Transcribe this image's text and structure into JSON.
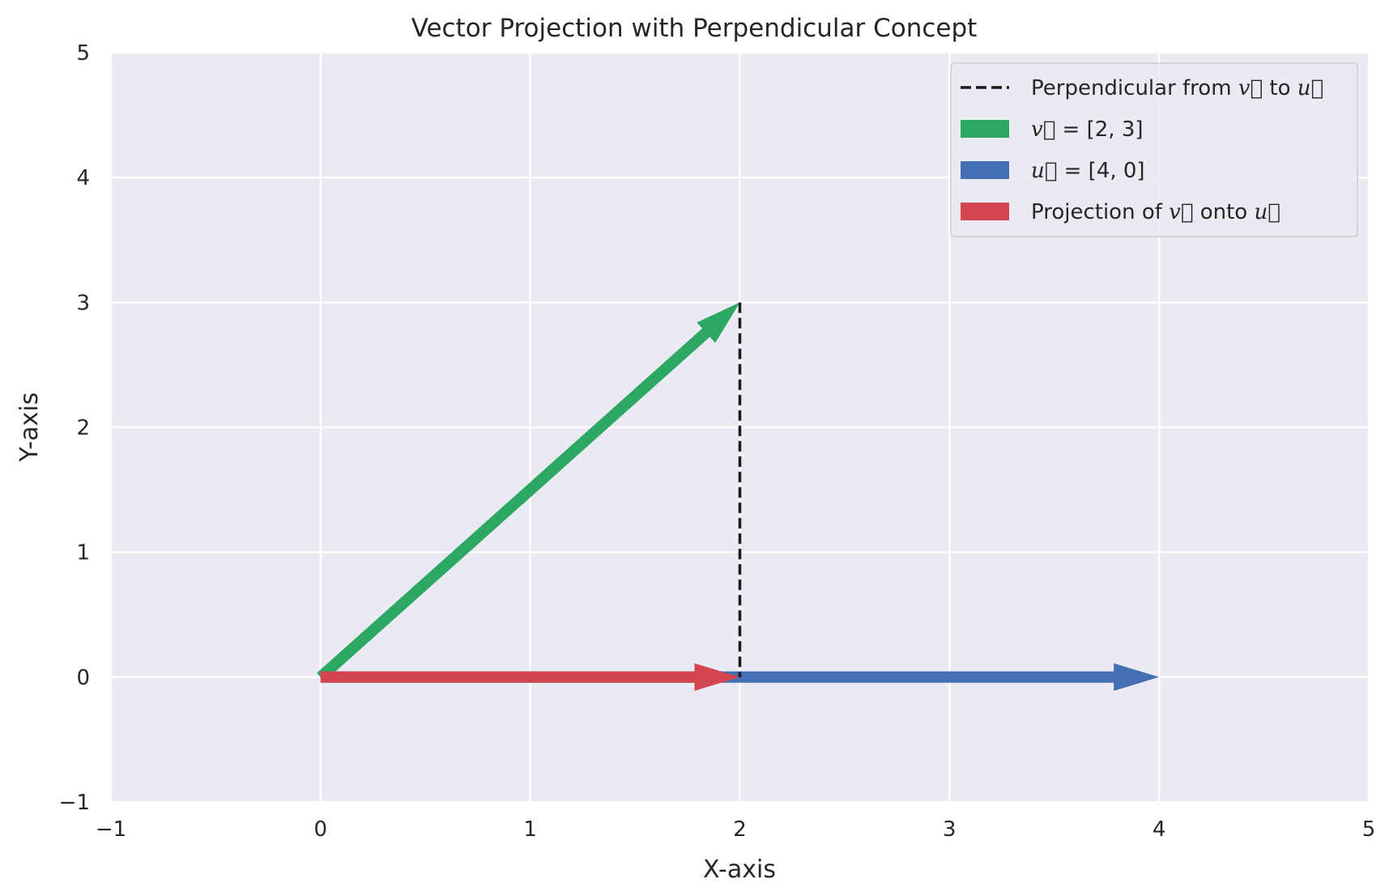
{
  "chart_data": {
    "type": "vector",
    "title": "Vector Projection with Perpendicular Concept",
    "xlabel": "X-axis",
    "ylabel": "Y-axis",
    "xlim": [
      -1,
      5
    ],
    "ylim": [
      -1,
      5
    ],
    "xticks": [
      -1,
      0,
      1,
      2,
      3,
      4,
      5
    ],
    "yticks": [
      -1,
      0,
      1,
      2,
      3,
      4,
      5
    ],
    "xtick_labels": [
      "−1",
      "0",
      "1",
      "2",
      "3",
      "4",
      "5"
    ],
    "ytick_labels": [
      "−1",
      "0",
      "1",
      "2",
      "3",
      "4",
      "5"
    ],
    "grid": true,
    "legend_position": "upper right",
    "background_color": "#eaeaf2",
    "grid_color": "#ffffff",
    "vectors": [
      {
        "id": "v",
        "name": "v = [2, 3]",
        "start": [
          0,
          0
        ],
        "end": [
          2,
          3
        ],
        "color": "#2ca862"
      },
      {
        "id": "u",
        "name": "u = [4, 0]",
        "start": [
          0,
          0
        ],
        "end": [
          4,
          0
        ],
        "color": "#4370b5"
      },
      {
        "id": "proj",
        "name": "Projection of v onto u",
        "start": [
          0,
          0
        ],
        "end": [
          2,
          0
        ],
        "color": "#d4464f"
      }
    ],
    "perpendicular": {
      "name": "Perpendicular from v to u",
      "start": [
        2,
        3
      ],
      "end": [
        2,
        0
      ],
      "color": "#1a1a1a",
      "style": "dashed"
    },
    "legend": [
      {
        "kind": "line",
        "color": "#1a1a1a",
        "parts": [
          {
            "t": "Perpendicular from "
          },
          {
            "t": "v",
            "vec": true
          },
          {
            "t": " to "
          },
          {
            "t": "u",
            "vec": true
          }
        ]
      },
      {
        "kind": "patch",
        "color": "#2ca862",
        "parts": [
          {
            "t": "v",
            "vec": true
          },
          {
            "t": " = [2, 3]",
            "math": true
          }
        ]
      },
      {
        "kind": "patch",
        "color": "#4370b5",
        "parts": [
          {
            "t": "u",
            "vec": true
          },
          {
            "t": " = [4, 0]",
            "math": true
          }
        ]
      },
      {
        "kind": "patch",
        "color": "#d4464f",
        "parts": [
          {
            "t": "Projection of "
          },
          {
            "t": "v",
            "vec": true
          },
          {
            "t": " onto "
          },
          {
            "t": "u",
            "vec": true
          }
        ]
      }
    ]
  }
}
